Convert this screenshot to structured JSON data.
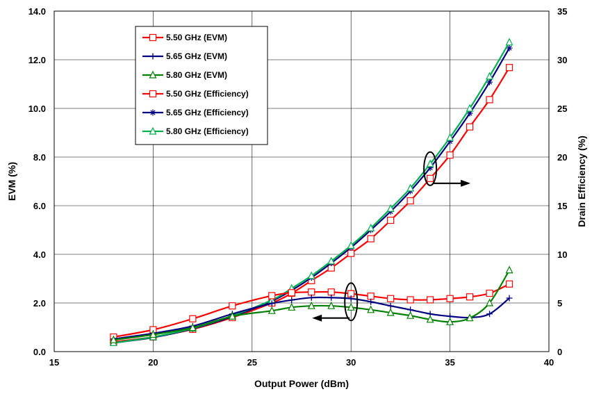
{
  "chart_data": {
    "type": "line",
    "xlabel": "Output Power (dBm)",
    "ylabel": "EVM (%)",
    "y2label": "Drain Efficiency (%)",
    "xlim": [
      15,
      40
    ],
    "ylim": [
      0,
      14
    ],
    "y2lim": [
      0,
      35
    ],
    "xticks": [
      15,
      20,
      25,
      30,
      35,
      40
    ],
    "yticks": [
      "0.0",
      "2.0",
      "4.0",
      "6.0",
      "8.0",
      "10.0",
      "12.0",
      "14.0"
    ],
    "y2ticks": [
      0,
      5,
      10,
      15,
      20,
      25,
      30,
      35
    ],
    "grid": true,
    "legend_position": "top-left",
    "colors": {
      "red": "#ff0000",
      "navy": "#000080",
      "green": "#008000",
      "teal": "#00b050"
    },
    "series": [
      {
        "name": "5.50 GHz (EVM)",
        "axis": "left",
        "marker": "square",
        "color": "#ff0000",
        "x": [
          18,
          20,
          22,
          24,
          26,
          27,
          28,
          29,
          30,
          31,
          32,
          33,
          34,
          35,
          36,
          37,
          38
        ],
        "y": [
          0.6,
          0.9,
          1.35,
          1.88,
          2.3,
          2.42,
          2.45,
          2.45,
          2.38,
          2.28,
          2.18,
          2.13,
          2.13,
          2.18,
          2.25,
          2.4,
          2.78
        ]
      },
      {
        "name": "5.65 GHz (EVM)",
        "axis": "left",
        "marker": "plus",
        "color": "#000080",
        "x": [
          18,
          20,
          22,
          24,
          26,
          27,
          28,
          29,
          30,
          31,
          32,
          33,
          34,
          35,
          36,
          37,
          38
        ],
        "y": [
          0.52,
          0.75,
          1.05,
          1.55,
          1.98,
          2.12,
          2.22,
          2.22,
          2.18,
          2.05,
          1.88,
          1.72,
          1.55,
          1.45,
          1.4,
          1.55,
          2.2
        ]
      },
      {
        "name": "5.80 GHz (EVM)",
        "axis": "left",
        "marker": "triangle",
        "color": "#008000",
        "x": [
          18,
          20,
          22,
          24,
          26,
          27,
          28,
          29,
          30,
          31,
          32,
          33,
          34,
          35,
          36,
          37,
          38
        ],
        "y": [
          0.48,
          0.7,
          0.98,
          1.45,
          1.68,
          1.82,
          1.88,
          1.88,
          1.82,
          1.72,
          1.6,
          1.48,
          1.32,
          1.22,
          1.38,
          2.0,
          3.35
        ]
      },
      {
        "name": "5.50 GHz (Efficiency)",
        "axis": "right",
        "marker": "square",
        "color": "#ff0000",
        "x": [
          18,
          20,
          22,
          24,
          26,
          27,
          28,
          29,
          30,
          31,
          32,
          33,
          34,
          35,
          36,
          37,
          38
        ],
        "y": [
          1.0,
          1.5,
          2.3,
          3.5,
          5.0,
          6.0,
          7.3,
          8.6,
          10.1,
          11.6,
          13.5,
          15.5,
          17.8,
          20.2,
          23.1,
          25.9,
          29.2
        ]
      },
      {
        "name": "5.65 GHz (Efficiency)",
        "axis": "right",
        "marker": "asterisk",
        "color": "#000080",
        "x": [
          18,
          20,
          22,
          24,
          26,
          27,
          28,
          29,
          30,
          31,
          32,
          33,
          34,
          35,
          36,
          37,
          38
        ],
        "y": [
          0.9,
          1.45,
          2.35,
          3.6,
          5.2,
          6.3,
          7.6,
          9.1,
          10.7,
          12.5,
          14.4,
          16.5,
          18.9,
          21.6,
          24.5,
          27.7,
          31.2
        ]
      },
      {
        "name": "5.80 GHz (Efficiency)",
        "axis": "right",
        "marker": "triangle",
        "color": "#00b050",
        "x": [
          18,
          20,
          22,
          24,
          26,
          27,
          28,
          29,
          30,
          31,
          32,
          33,
          34,
          35,
          36,
          37,
          38
        ],
        "y": [
          0.9,
          1.5,
          2.4,
          3.7,
          5.3,
          6.5,
          7.8,
          9.3,
          10.9,
          12.7,
          14.7,
          16.8,
          19.3,
          22.0,
          25.0,
          28.3,
          31.8
        ]
      }
    ]
  }
}
